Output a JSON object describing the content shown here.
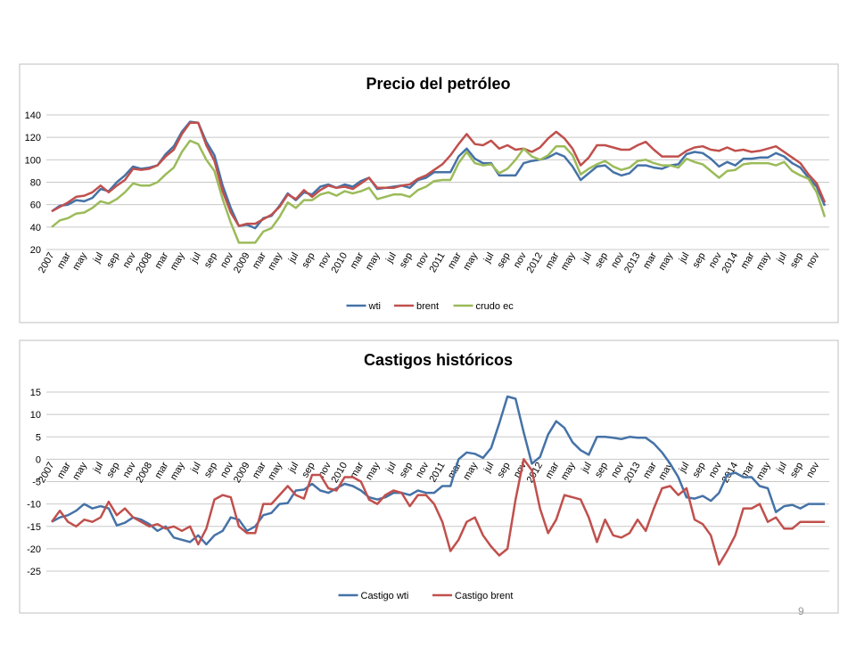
{
  "chart_data": [
    {
      "type": "line",
      "title": "Precio del petróleo",
      "categories": [
        "2007",
        null,
        "mar",
        null,
        "may",
        null,
        "jul",
        null,
        "sep",
        null,
        "nov",
        null,
        "2008",
        null,
        "mar",
        null,
        "may",
        null,
        "jul",
        null,
        "sep",
        null,
        "nov",
        null,
        "2009",
        null,
        "mar",
        null,
        "may",
        null,
        "jul",
        null,
        "sep",
        null,
        "nov",
        null,
        "2010",
        null,
        "mar",
        null,
        "may",
        null,
        "jul",
        null,
        "sep",
        null,
        "nov",
        null,
        "2011",
        null,
        "mar",
        null,
        "may",
        null,
        "jul",
        null,
        "sep",
        null,
        "nov",
        null,
        "2012",
        null,
        "mar",
        null,
        "may",
        null,
        "jul",
        null,
        "sep",
        null,
        "nov",
        null,
        "2013",
        null,
        "mar",
        null,
        "may",
        null,
        "jul",
        null,
        "sep",
        null,
        "nov",
        null,
        "2014",
        null,
        "mar",
        null,
        "may",
        null,
        "jul",
        null,
        "sep",
        null,
        "nov",
        null
      ],
      "series": [
        {
          "name": "wti",
          "color": "#4572a7",
          "values": [
            54,
            59,
            60,
            64,
            63,
            66,
            74,
            72,
            80,
            86,
            94,
            92,
            93,
            95,
            105,
            112,
            125,
            134,
            133,
            116,
            104,
            77,
            57,
            41,
            42,
            39,
            48,
            50,
            59,
            70,
            64,
            71,
            69,
            76,
            78,
            75,
            78,
            76,
            81,
            84,
            74,
            75,
            76,
            77,
            75,
            82,
            84,
            89,
            89,
            89,
            103,
            110,
            101,
            97,
            97,
            86,
            86,
            86,
            97,
            99,
            100,
            102,
            106,
            103,
            94,
            82,
            88,
            94,
            95,
            89,
            86,
            88,
            95,
            95,
            93,
            92,
            95,
            96,
            105,
            107,
            106,
            101,
            94,
            98,
            95,
            101,
            101,
            102,
            102,
            106,
            103,
            97,
            93,
            84,
            76,
            59
          ]
        },
        {
          "name": "brent",
          "color": "#c0504d",
          "values": [
            54,
            58,
            62,
            67,
            68,
            71,
            77,
            71,
            77,
            82,
            92,
            91,
            92,
            95,
            103,
            109,
            123,
            133,
            133,
            113,
            99,
            72,
            53,
            41,
            43,
            43,
            47,
            51,
            58,
            69,
            65,
            73,
            67,
            73,
            77,
            75,
            76,
            74,
            79,
            84,
            75,
            75,
            75,
            77,
            78,
            83,
            86,
            91,
            96,
            104,
            114,
            123,
            114,
            113,
            117,
            110,
            113,
            109,
            110,
            107,
            111,
            119,
            125,
            119,
            110,
            95,
            102,
            113,
            113,
            111,
            109,
            109,
            113,
            116,
            109,
            103,
            103,
            103,
            108,
            111,
            112,
            109,
            108,
            111,
            108,
            109,
            107,
            108,
            110,
            112,
            107,
            102,
            97,
            87,
            79,
            62
          ]
        },
        {
          "name": "crudo ec",
          "color": "#9bbb59",
          "values": [
            40,
            46,
            48,
            52,
            53,
            57,
            63,
            61,
            65,
            71,
            79,
            77,
            77,
            80,
            87,
            93,
            107,
            117,
            114,
            100,
            90,
            65,
            44,
            26,
            26,
            26,
            36,
            39,
            49,
            62,
            57,
            64,
            64,
            69,
            71,
            68,
            72,
            70,
            72,
            75,
            65,
            67,
            69,
            69,
            67,
            73,
            76,
            81,
            82,
            82,
            97,
            107,
            97,
            95,
            96,
            88,
            92,
            100,
            110,
            103,
            100,
            104,
            112,
            112,
            104,
            87,
            92,
            96,
            99,
            94,
            91,
            93,
            99,
            100,
            97,
            95,
            95,
            93,
            101,
            98,
            96,
            90,
            84,
            90,
            91,
            96,
            97,
            97,
            97,
            95,
            98,
            90,
            86,
            83,
            71,
            49
          ]
        }
      ],
      "ylim": [
        20,
        140
      ],
      "yticks": [
        20,
        40,
        60,
        80,
        100,
        120,
        140
      ],
      "grid": true,
      "legend": "bottom"
    },
    {
      "type": "line",
      "title": "Castigos históricos",
      "categories": [
        "2007",
        null,
        "mar",
        null,
        "may",
        null,
        "jul",
        null,
        "sep",
        null,
        "nov",
        null,
        "2008",
        null,
        "mar",
        null,
        "may",
        null,
        "jul",
        null,
        "sep",
        null,
        "nov",
        null,
        "2009",
        null,
        "mar",
        null,
        "may",
        null,
        "jul",
        null,
        "sep",
        null,
        "nov",
        null,
        "2010",
        null,
        "mar",
        null,
        "may",
        null,
        "jul",
        null,
        "sep",
        null,
        "nov",
        null,
        "2011",
        null,
        "mar",
        null,
        "may",
        null,
        "jul",
        null,
        "sep",
        null,
        "nov",
        null,
        "2012",
        null,
        "mar",
        null,
        "may",
        null,
        "jul",
        null,
        "sep",
        null,
        "nov",
        null,
        "2013",
        null,
        "mar",
        null,
        "may",
        null,
        "jul",
        null,
        "sep",
        null,
        "nov",
        null,
        "2014",
        null,
        "mar",
        null,
        "may",
        null,
        "jul",
        null,
        "sep",
        null,
        "nov",
        null
      ],
      "series": [
        {
          "name": "Castigo wti",
          "color": "#4572a7",
          "values": [
            -14,
            -13,
            -12.5,
            -11.5,
            -10,
            -11,
            -10.5,
            -11,
            -14.8,
            -14.2,
            -13,
            -13.5,
            -14.5,
            -16,
            -15,
            -17.5,
            -18,
            -18.5,
            -17,
            -19,
            -17,
            -16,
            -13,
            -13.5,
            -16,
            -15,
            -12.5,
            -12,
            -10,
            -9.8,
            -7,
            -6.8,
            -5.5,
            -7,
            -7.5,
            -6.5,
            -5.5,
            -6,
            -7,
            -8.5,
            -9,
            -8.5,
            -7.5,
            -7.5,
            -8,
            -7,
            -7.5,
            -7.5,
            -6,
            -6,
            0,
            1.5,
            1.2,
            0.3,
            2.5,
            8,
            14,
            13.5,
            6,
            -1,
            0.5,
            5.5,
            8.5,
            7,
            3.8,
            2,
            1,
            5,
            5,
            4.8,
            4.5,
            5,
            4.8,
            4.8,
            3.5,
            1.5,
            -1,
            -4,
            -8.5,
            -8.8,
            -8.2,
            -9.3,
            -7.5,
            -3.5,
            -3,
            -4,
            -4,
            -6,
            -6.5,
            -11.8,
            -10.5,
            -10.2,
            -11,
            -10,
            -10,
            -10
          ]
        },
        {
          "name": "Castigo brent",
          "color": "#c0504d",
          "values": [
            -14,
            -11.5,
            -14,
            -15,
            -13.5,
            -14,
            -13,
            -9.5,
            -12.5,
            -11,
            -13,
            -14,
            -15,
            -14.5,
            -15.5,
            -15,
            -16,
            -15,
            -19,
            -15.5,
            -9,
            -8,
            -8.5,
            -15,
            -16.5,
            -16.5,
            -10,
            -10,
            -8,
            -6,
            -8,
            -8.8,
            -3.5,
            -3.5,
            -6.5,
            -7,
            -4,
            -4,
            -5,
            -9,
            -10,
            -8,
            -7,
            -7.5,
            -10.5,
            -8,
            -8,
            -10,
            -14,
            -20.5,
            -18,
            -14,
            -13,
            -17,
            -19.5,
            -21.5,
            -20,
            -9,
            0,
            -2.5,
            -11,
            -16.5,
            -13.5,
            -8,
            -8.5,
            -9,
            -13,
            -18.5,
            -13.5,
            -17,
            -17.5,
            -16.5,
            -13.5,
            -16,
            -11,
            -6.5,
            -6,
            -8,
            -6.5,
            -13.5,
            -14.5,
            -17,
            -23.5,
            -20.5,
            -17,
            -11,
            -11,
            -10,
            -14,
            -13,
            -15.5,
            -15.5,
            -14,
            -14,
            -14,
            -14
          ]
        }
      ],
      "ylim": [
        -25,
        15
      ],
      "yticks": [
        -25,
        -20,
        -15,
        -10,
        -5,
        0,
        5,
        10,
        15
      ],
      "grid": true,
      "legend": "bottom"
    }
  ],
  "slide_number": "9"
}
